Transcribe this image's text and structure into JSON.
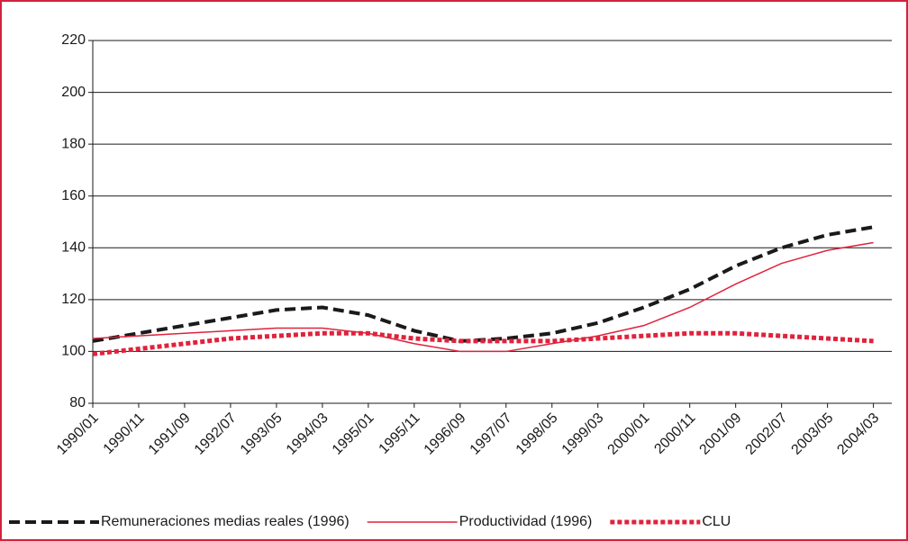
{
  "chart_data": {
    "type": "line",
    "x": [
      "1990/01",
      "1990/11",
      "1991/09",
      "1992/07",
      "1993/05",
      "1994/03",
      "1995/01",
      "1995/11",
      "1996/09",
      "1997/07",
      "1998/05",
      "1999/03",
      "2000/01",
      "2000/11",
      "2001/09",
      "2002/07",
      "2003/05",
      "2004/03"
    ],
    "series": [
      {
        "name": "Remuneraciones medias reales (1996)",
        "color": "#1a1a1a",
        "style": "dashed",
        "values": [
          104,
          107,
          110,
          113,
          116,
          117,
          114,
          108,
          104,
          105,
          107,
          111,
          117,
          124,
          133,
          140,
          145,
          148
        ]
      },
      {
        "name": "Productividad (1996)",
        "color": "#e0223c",
        "style": "solid",
        "values": [
          105,
          106,
          107,
          108,
          109,
          109,
          107,
          103,
          100,
          100,
          103,
          106,
          110,
          117,
          126,
          134,
          139,
          142
        ]
      },
      {
        "name": "CLU",
        "color": "#e0223c",
        "style": "dotted",
        "values": [
          99,
          101,
          103,
          105,
          106,
          107,
          107,
          105,
          104,
          104,
          104,
          105,
          106,
          107,
          107,
          106,
          105,
          104
        ]
      }
    ],
    "ylim": [
      80,
      220
    ],
    "yticks": [
      80,
      100,
      120,
      140,
      160,
      180,
      200,
      220
    ],
    "grid": true
  }
}
